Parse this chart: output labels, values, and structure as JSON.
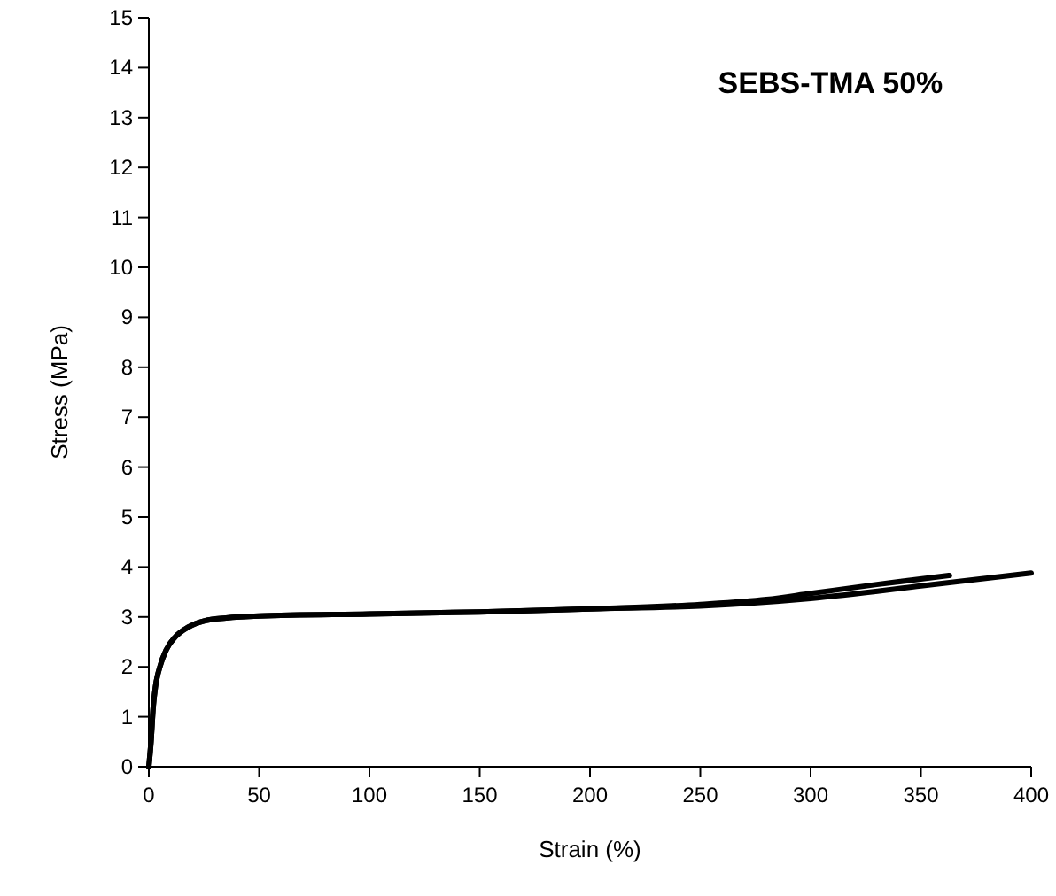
{
  "chart_data": {
    "type": "line",
    "xlabel": "Strain (%)",
    "ylabel": "Stress (MPa)",
    "annotations": [
      "SEBS-TMA 50%"
    ],
    "xlim": [
      0,
      400
    ],
    "xticks": [
      0,
      50,
      100,
      150,
      200,
      250,
      300,
      350,
      400
    ],
    "ylim": [
      0,
      15
    ],
    "yticks": [
      0,
      1,
      2,
      3,
      4,
      5,
      6,
      7,
      8,
      9,
      10,
      11,
      12,
      13,
      14,
      15
    ],
    "grid": false,
    "marker": "none",
    "line_style": "solid",
    "series": [
      {
        "color": "#000000",
        "x": [
          0,
          1,
          2,
          3,
          5,
          8,
          12,
          18,
          25,
          35,
          50,
          100,
          150,
          200,
          250,
          280,
          300,
          330,
          363
        ],
        "values": [
          0,
          0.5,
          1.2,
          1.6,
          2.0,
          2.35,
          2.6,
          2.8,
          2.92,
          2.98,
          3.02,
          3.06,
          3.1,
          3.16,
          3.25,
          3.35,
          3.47,
          3.65,
          3.83
        ]
      },
      {
        "color": "#000000",
        "x": [
          0,
          1,
          2,
          3,
          5,
          8,
          12,
          18,
          25,
          35,
          50,
          100,
          150,
          200,
          250,
          300,
          350,
          400
        ],
        "values": [
          0,
          0.5,
          1.2,
          1.6,
          2.0,
          2.35,
          2.6,
          2.8,
          2.92,
          2.98,
          3.02,
          3.06,
          3.1,
          3.16,
          3.22,
          3.37,
          3.62,
          3.88
        ]
      }
    ]
  }
}
